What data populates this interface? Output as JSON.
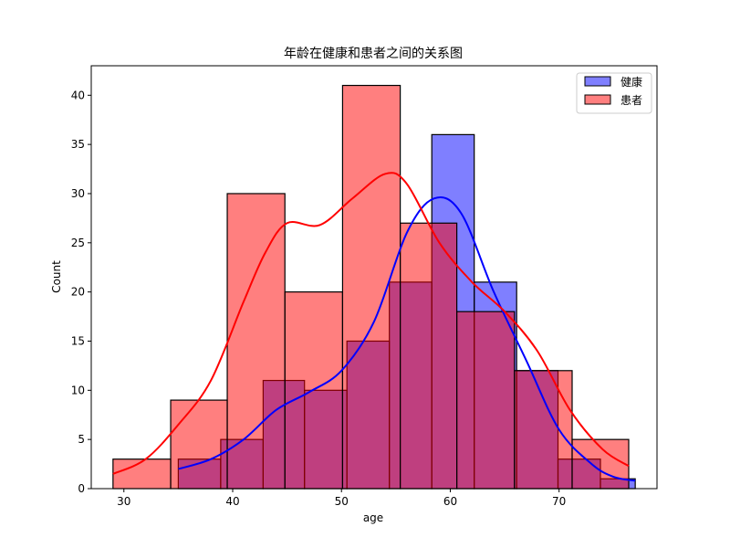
{
  "chart_data": {
    "type": "histogram",
    "title": "年龄在健康和患者之间的关系图",
    "xlabel": "age",
    "ylabel": "Count",
    "xlim": [
      27,
      79
    ],
    "ylim": [
      0,
      43
    ],
    "xticks": [
      30,
      40,
      50,
      60,
      70
    ],
    "yticks": [
      0,
      5,
      10,
      15,
      20,
      25,
      30,
      35,
      40
    ],
    "legend_position": "top-right",
    "series": [
      {
        "name": "健康",
        "color": "#0000ff",
        "bar_opacity": 0.5,
        "bins": [
          {
            "x0": 35.0,
            "x1": 38.9,
            "count": 3
          },
          {
            "x0": 38.9,
            "x1": 42.8,
            "count": 5
          },
          {
            "x0": 42.8,
            "x1": 46.6,
            "count": 11
          },
          {
            "x0": 46.6,
            "x1": 50.5,
            "count": 10
          },
          {
            "x0": 50.5,
            "x1": 54.4,
            "count": 15
          },
          {
            "x0": 54.4,
            "x1": 58.3,
            "count": 21
          },
          {
            "x0": 58.3,
            "x1": 62.2,
            "count": 36
          },
          {
            "x0": 62.2,
            "x1": 66.1,
            "count": 21
          },
          {
            "x0": 66.1,
            "x1": 69.9,
            "count": 12
          },
          {
            "x0": 69.9,
            "x1": 73.8,
            "count": 3
          },
          {
            "x0": 73.8,
            "x1": 77.0,
            "count": 1
          }
        ],
        "kde": [
          [
            35,
            2.0
          ],
          [
            38,
            3.0
          ],
          [
            41,
            5.0
          ],
          [
            44,
            8.0
          ],
          [
            47,
            9.8
          ],
          [
            50,
            12.0
          ],
          [
            53,
            17.0
          ],
          [
            56,
            26.0
          ],
          [
            58.5,
            29.5
          ],
          [
            61,
            28.0
          ],
          [
            64,
            20.0
          ],
          [
            67,
            13.0
          ],
          [
            70,
            6.0
          ],
          [
            73,
            2.5
          ],
          [
            75,
            1.2
          ],
          [
            77,
            0.8
          ]
        ]
      },
      {
        "name": "患者",
        "color": "#ff0000",
        "bar_opacity": 0.5,
        "bins": [
          {
            "x0": 29.0,
            "x1": 34.3,
            "count": 3
          },
          {
            "x0": 34.3,
            "x1": 39.5,
            "count": 9
          },
          {
            "x0": 39.5,
            "x1": 44.8,
            "count": 30
          },
          {
            "x0": 44.8,
            "x1": 50.1,
            "count": 20
          },
          {
            "x0": 50.1,
            "x1": 55.4,
            "count": 41
          },
          {
            "x0": 55.4,
            "x1": 60.6,
            "count": 27
          },
          {
            "x0": 60.6,
            "x1": 65.9,
            "count": 18
          },
          {
            "x0": 65.9,
            "x1": 71.2,
            "count": 12
          },
          {
            "x0": 71.2,
            "x1": 76.4,
            "count": 5
          }
        ],
        "kde": [
          [
            29,
            1.5
          ],
          [
            32,
            3.0
          ],
          [
            35,
            6.5
          ],
          [
            38,
            11.0
          ],
          [
            41,
            19.0
          ],
          [
            43,
            24.0
          ],
          [
            45,
            27.0
          ],
          [
            48,
            26.8
          ],
          [
            51,
            29.5
          ],
          [
            54,
            32.0
          ],
          [
            56,
            31.0
          ],
          [
            59,
            25.0
          ],
          [
            62,
            21.0
          ],
          [
            65,
            18.0
          ],
          [
            68,
            14.0
          ],
          [
            71,
            8.0
          ],
          [
            74,
            4.0
          ],
          [
            76.4,
            2.3
          ]
        ]
      }
    ]
  }
}
